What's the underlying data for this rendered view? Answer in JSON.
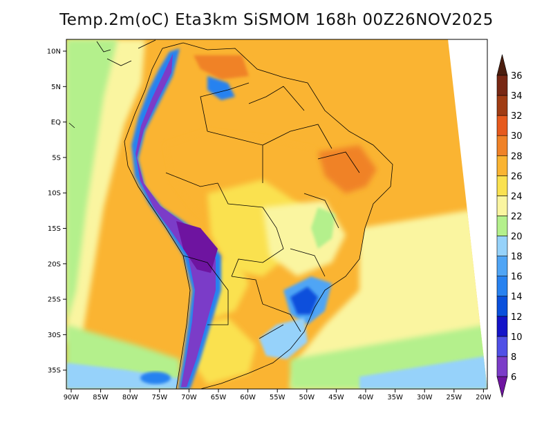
{
  "title": "Temp.2m(oC) Eta3km SiSMOM 168h 00Z26NOV2025",
  "lat_labels": [
    "10N",
    "5N",
    "EQ",
    "5S",
    "10S",
    "15S",
    "20S",
    "25S",
    "30S",
    "35S"
  ],
  "lon_labels": [
    "90W",
    "85W",
    "80W",
    "75W",
    "70W",
    "65W",
    "60W",
    "55W",
    "50W",
    "45W",
    "40W",
    "35W",
    "30W",
    "25W",
    "20W"
  ],
  "colorbar": {
    "levels": [
      6,
      8,
      10,
      12,
      14,
      16,
      18,
      20,
      22,
      24,
      26,
      28,
      30,
      32,
      34,
      36
    ],
    "labels": [
      "6",
      "8",
      "10",
      "12",
      "14",
      "16",
      "18",
      "20",
      "22",
      "24",
      "26",
      "28",
      "30",
      "32",
      "34",
      "36"
    ],
    "colors": [
      "#a03ec8",
      "#7b3cc8",
      "#5050e6",
      "#1414c8",
      "#0a50dc",
      "#2882f0",
      "#50a5f5",
      "#96d2fa",
      "#b4f08c",
      "#faf5a0",
      "#fae150",
      "#fab432",
      "#f08228",
      "#e65a1e",
      "#a03c14",
      "#782814",
      "#501e0f"
    ],
    "under_color": "#6e14a0",
    "over_color": "#4b1e0f"
  }
}
